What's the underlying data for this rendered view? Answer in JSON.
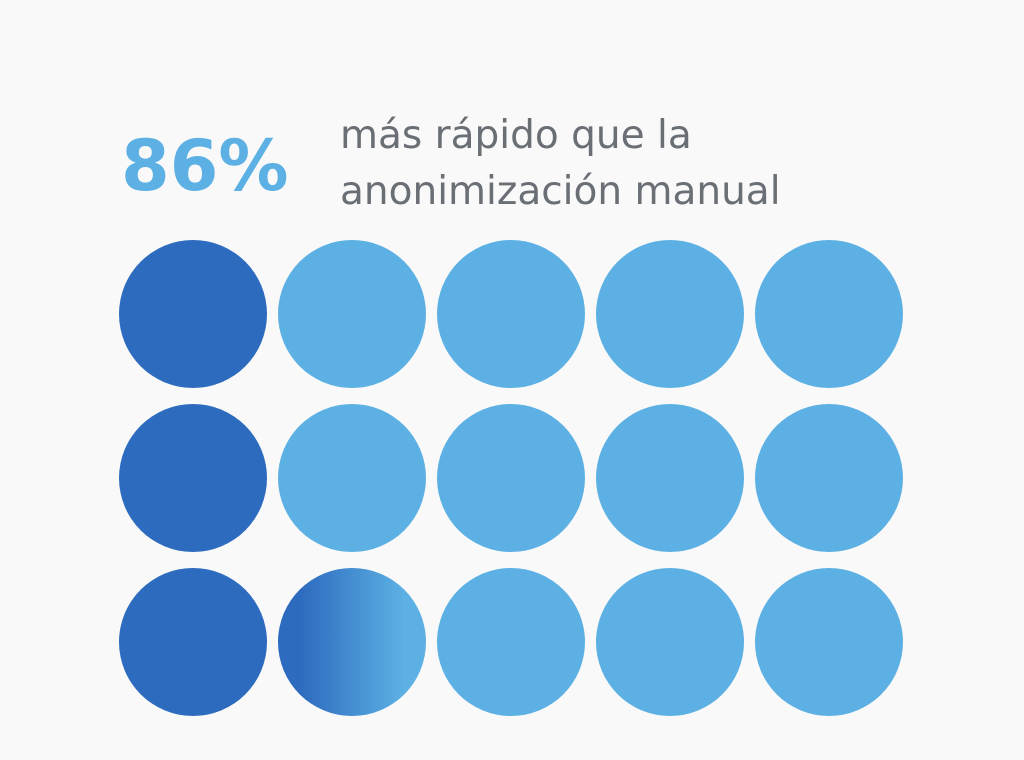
{
  "stat": {
    "value": "86%",
    "lines": [
      "más rápido que la",
      "anonimización manual"
    ]
  }
}
